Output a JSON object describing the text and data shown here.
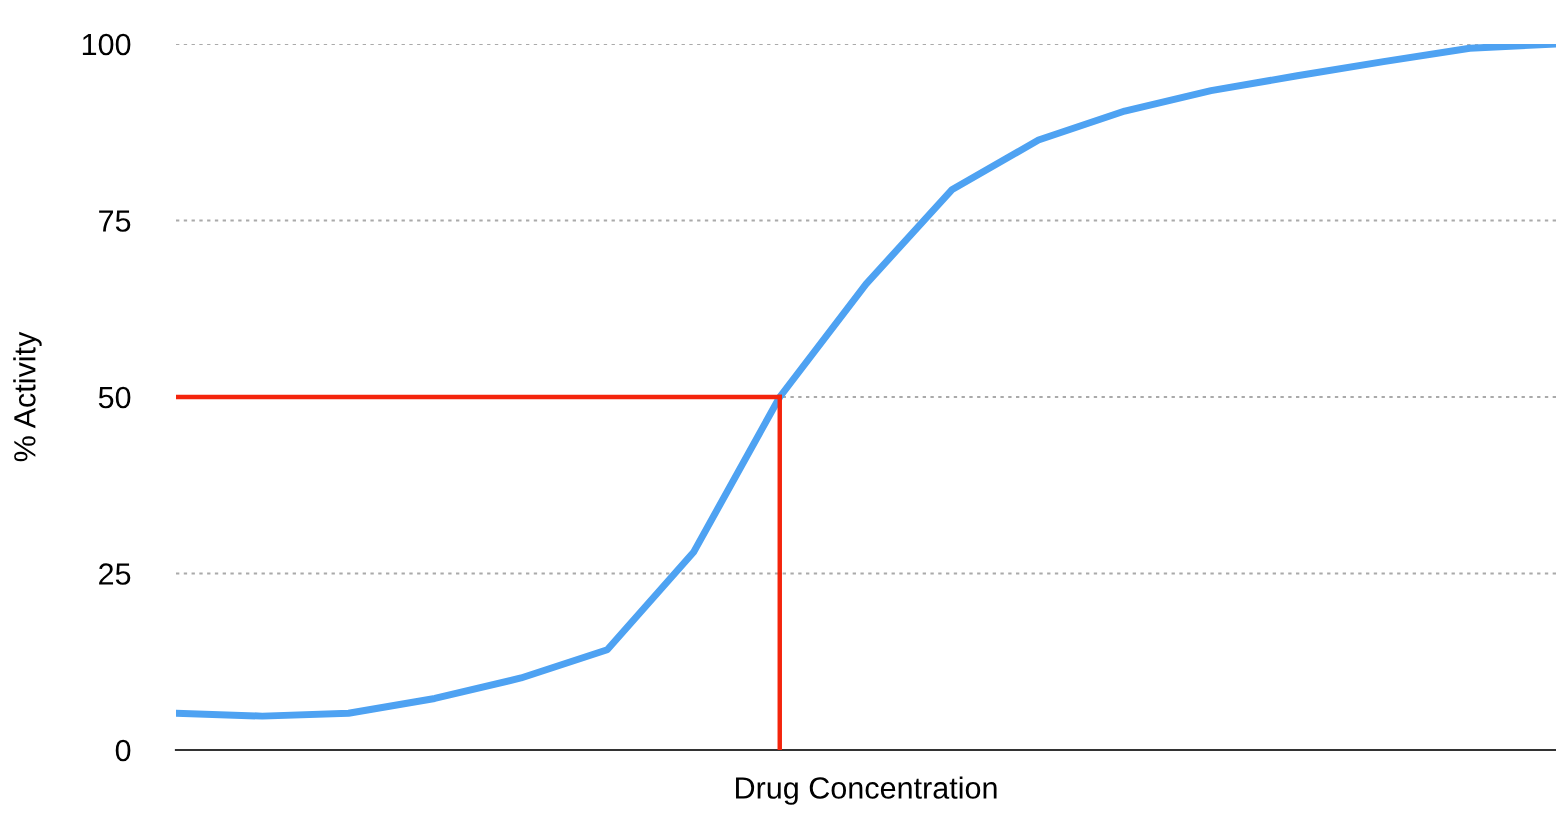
{
  "chart_data": {
    "type": "line",
    "xlabel": "Drug Concentration",
    "ylabel": "% Activity",
    "categories": [
      null,
      null,
      null,
      null,
      null,
      null,
      null,
      null,
      null,
      null,
      null,
      null,
      null,
      null,
      null,
      null,
      null
    ],
    "series": [
      {
        "color": "#4ea2f2",
        "values": [
          5.2,
          4.8,
          5.2,
          7.3,
          10.2,
          14.2,
          28,
          50,
          66,
          79.4,
          86.4,
          90.5,
          93.4,
          95.5,
          97.5,
          99.4,
          100
        ]
      },
      {
        "color": "#f4240c",
        "values": [
          50,
          50,
          50,
          50,
          50,
          50,
          50,
          50,
          null,
          null,
          null,
          null,
          null,
          null,
          null,
          null,
          null
        ],
        "errors": [
          null,
          null,
          null,
          null,
          null,
          null,
          null,
          [
            0,
            50
          ],
          null,
          null,
          null,
          null,
          null,
          null,
          null,
          null,
          null
        ]
      }
    ],
    "ylim": [
      0,
      100
    ],
    "yticks": [
      0,
      25,
      50,
      75,
      100
    ],
    "grid": "y",
    "legend": false
  }
}
